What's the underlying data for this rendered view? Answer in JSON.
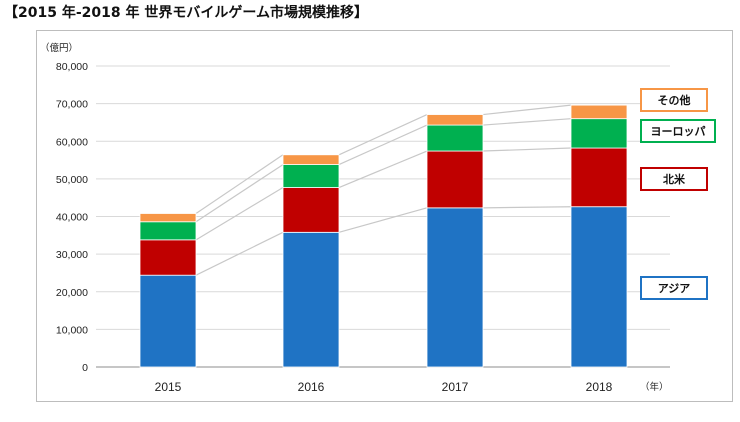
{
  "title": "【2015 年-2018 年 世界モバイルゲーム市場規模推移】",
  "chart_data": {
    "type": "bar",
    "stacked": true,
    "title": "【2015 年-2018 年 世界モバイルゲーム市場規模推移】",
    "y_unit_label": "（億円）",
    "x_unit_label": "（年）",
    "categories": [
      "2015",
      "2016",
      "2017",
      "2018"
    ],
    "ylim": [
      0,
      80000
    ],
    "yticks": [
      "0",
      "10,000",
      "20,000",
      "30,000",
      "40,000",
      "50,000",
      "60,000",
      "70,000",
      "80,000"
    ],
    "ytick_values": [
      0,
      10000,
      20000,
      30000,
      40000,
      50000,
      60000,
      70000,
      80000
    ],
    "grid": true,
    "connector_lines": true,
    "legend_position": "right",
    "series": [
      {
        "name": "アジア",
        "color": "#1f73c4",
        "values": [
          24400,
          35800,
          42300,
          42600
        ]
      },
      {
        "name": "北米",
        "color": "#c00000",
        "values": [
          9400,
          11900,
          15100,
          15600
        ]
      },
      {
        "name": "ヨーロッパ",
        "color": "#00b050",
        "values": [
          4800,
          6100,
          6900,
          7800
        ]
      },
      {
        "name": "その他",
        "color": "#f79646",
        "values": [
          2200,
          2600,
          2800,
          3600
        ]
      }
    ]
  }
}
